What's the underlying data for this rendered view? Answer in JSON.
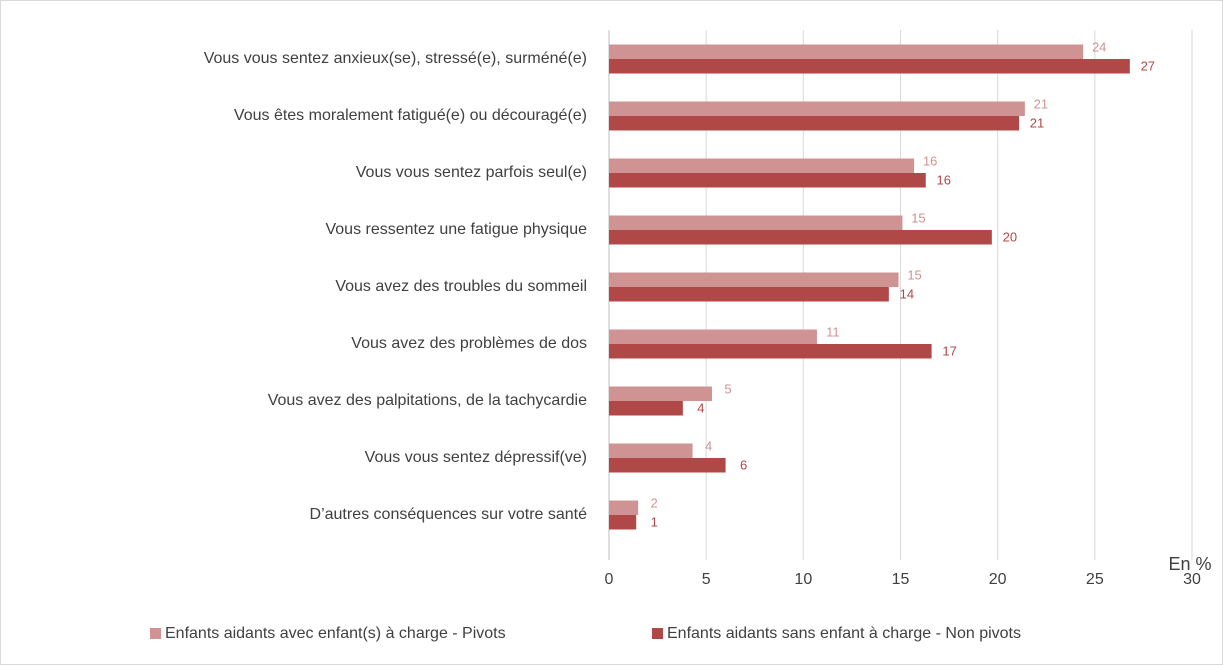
{
  "chart_data": {
    "type": "bar",
    "orientation": "horizontal",
    "categories": [
      "Vous vous sentez anxieux(se), stressé(e), surméné(e)",
      "Vous êtes moralement fatigué(e) ou découragé(e)",
      "Vous vous sentez parfois seul(e)",
      "Vous ressentez une fatigue physique",
      "Vous avez des troubles du sommeil",
      "Vous avez des problèmes de dos",
      "Vous avez des palpitations, de la tachycardie",
      "Vous vous sentez dépressif(ve)",
      "D’autres conséquences sur votre santé"
    ],
    "series": [
      {
        "name": "Enfants aidants avec enfant(s) à charge - Pivots",
        "color": "#d09393",
        "values": [
          24.4,
          21.4,
          15.7,
          15.1,
          14.9,
          10.7,
          5.3,
          4.3,
          1.5
        ],
        "value_labels": [
          "24",
          "21",
          "16",
          "15",
          "15",
          "11",
          "5",
          "4",
          "2"
        ]
      },
      {
        "name": "Enfants aidants sans enfant à charge - Non pivots",
        "color": "#b04848",
        "values": [
          26.8,
          21.1,
          16.3,
          19.7,
          14.4,
          16.6,
          3.8,
          6.0,
          1.4
        ],
        "value_labels": [
          "27",
          "21",
          "16",
          "20",
          "14",
          "17",
          "4",
          "6",
          "1"
        ]
      }
    ],
    "xlabel": "En %",
    "xlim": [
      0,
      30
    ],
    "xticks": [
      0,
      5,
      10,
      15,
      20,
      25,
      30
    ],
    "grid": true,
    "legend": "bottom"
  }
}
